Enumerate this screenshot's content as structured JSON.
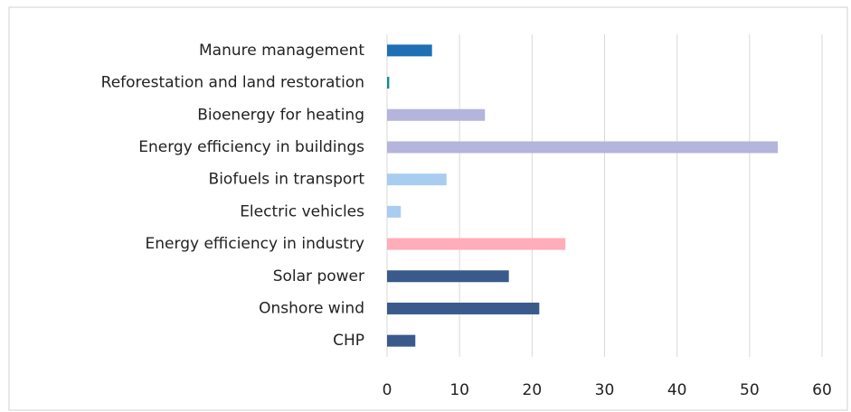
{
  "chart_data": {
    "type": "hbar",
    "categories": [
      "Manure management",
      "Reforestation and land restoration",
      "Bioenergy for heating",
      "Energy efficiency in buildings",
      "Biofuels in transport",
      "Electric vehicles",
      "Energy efficiency in industry",
      "Solar power",
      "Onshore wind",
      "CHP"
    ],
    "values": [
      6.2,
      0.3,
      13.5,
      53.9,
      8.2,
      1.9,
      24.6,
      16.8,
      21,
      3.9
    ],
    "colors": [
      "#1f6fb5",
      "#1a8a8a",
      "#b4b4dc",
      "#b4b4dc",
      "#a9cdf0",
      "#a9cdf0",
      "#ffadb9",
      "#3a5a8c",
      "#3a5a8c",
      "#3a5a8c"
    ],
    "xlim": [
      0,
      60
    ],
    "xticks": [
      0,
      10,
      20,
      30,
      40,
      50,
      60
    ],
    "grid": true
  }
}
